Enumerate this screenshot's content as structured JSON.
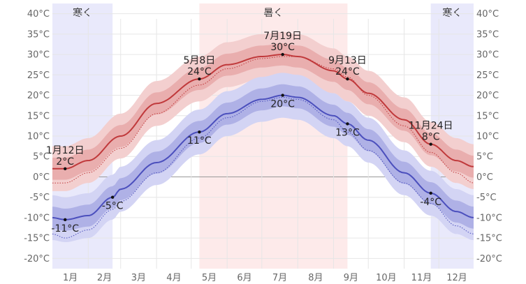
{
  "chart_data": {
    "type": "line",
    "ylim": [
      -22.5,
      42.5
    ],
    "y_ticks": [
      40,
      35,
      30,
      25,
      20,
      15,
      10,
      5,
      0,
      -5,
      -10,
      -15,
      -20
    ],
    "y_tick_labels": [
      "40°C",
      "35°C",
      "30°C",
      "25°C",
      "20°C",
      "15°C",
      "10°C",
      "5°C",
      "0°C",
      "-5°C",
      "-10°C",
      "-15°C",
      "-20°C"
    ],
    "month_labels": [
      "1月",
      "2月",
      "3月",
      "4月",
      "5月",
      "6月",
      "7月",
      "8月",
      "9月",
      "10月",
      "11月",
      "12月"
    ],
    "seasons": [
      {
        "name": "寒く",
        "kind": "cold",
        "start_day": 1,
        "end_day": 53
      },
      {
        "name": "暑く",
        "kind": "hot",
        "start_day": 128,
        "end_day": 256
      },
      {
        "name": "寒く",
        "kind": "cold",
        "start_day": 328,
        "end_day": 365
      }
    ],
    "series": [
      {
        "name": "high",
        "color": "#c0393b",
        "days": [
          1,
          12,
          32,
          60,
          91,
          128,
          152,
          182,
          200,
          213,
          244,
          256,
          274,
          305,
          328,
          350,
          365
        ],
        "values": [
          2,
          2,
          4,
          10,
          18,
          24,
          27.5,
          29.5,
          30,
          29.5,
          26,
          24,
          20.5,
          14,
          8,
          4,
          2.5
        ],
        "normal": [
          -1.5,
          -1.5,
          1,
          7,
          15.5,
          22.5,
          26.5,
          29,
          29.5,
          29.5,
          26.5,
          24.5,
          20,
          12.5,
          6,
          1,
          -1.5
        ],
        "inner_spread": 2.7,
        "outer_spread": 5.5
      },
      {
        "name": "low",
        "color": "#4b4fbd",
        "days": [
          1,
          12,
          32,
          53,
          60,
          91,
          128,
          152,
          182,
          200,
          213,
          244,
          256,
          274,
          305,
          328,
          350,
          365
        ],
        "values": [
          -10,
          -10.5,
          -9.5,
          -5,
          -3,
          3.5,
          11,
          15.5,
          19,
          20,
          19.5,
          15,
          13,
          9,
          1,
          -4,
          -8.5,
          -10
        ],
        "normal": [
          -14,
          -15,
          -13,
          -8,
          -6,
          1,
          9.5,
          14.5,
          18.5,
          19.5,
          19,
          14,
          11,
          6.5,
          -1.5,
          -6.5,
          -12,
          -14
        ],
        "inner_spread": 2.7,
        "outer_spread": 5.5
      }
    ],
    "annotations": [
      {
        "series": "high",
        "day": 12,
        "date": "1月12日",
        "value": 2,
        "label": "2°C",
        "position": "above"
      },
      {
        "series": "high",
        "day": 128,
        "date": "5月8日",
        "value": 24,
        "label": "24°C",
        "position": "above"
      },
      {
        "series": "high",
        "day": 200,
        "date": "7月19日",
        "value": 30,
        "label": "30°C",
        "position": "above"
      },
      {
        "series": "high",
        "day": 256,
        "date": "9月13日",
        "value": 24,
        "label": "24°C",
        "position": "above"
      },
      {
        "series": "high",
        "day": 328,
        "date": "11月24日",
        "value": 8,
        "label": "8°C",
        "position": "above"
      },
      {
        "series": "low",
        "day": 12,
        "value": -10.5,
        "label": "-11°C",
        "position": "below"
      },
      {
        "series": "low",
        "day": 53,
        "value": -5,
        "label": "-5°C",
        "position": "below"
      },
      {
        "series": "low",
        "day": 128,
        "value": 11,
        "label": "11°C",
        "position": "below"
      },
      {
        "series": "low",
        "day": 200,
        "value": 20,
        "label": "20°C",
        "position": "below"
      },
      {
        "series": "low",
        "day": 256,
        "value": 13,
        "label": "13°C",
        "position": "below"
      },
      {
        "series": "low",
        "day": 328,
        "value": -4,
        "label": "-4°C",
        "position": "below"
      }
    ]
  }
}
